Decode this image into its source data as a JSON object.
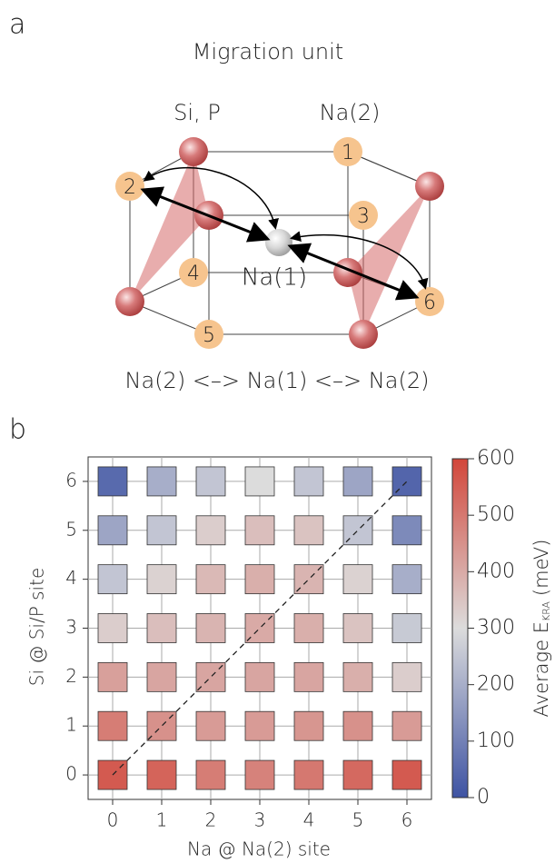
{
  "panel_a": {
    "label": "a",
    "title": "Migration unit",
    "group_labels": [
      "Si, P",
      "Na(2)"
    ],
    "center_label": "Na(1)",
    "site_labels": [
      "1",
      "2",
      "3",
      "4",
      "5",
      "6"
    ],
    "caption": "Na(2) <–> Na(1) <–> Na(2)"
  },
  "chart_data": {
    "type": "heatmap",
    "panel_label": "b",
    "x": [
      0,
      1,
      2,
      3,
      4,
      5,
      6
    ],
    "y": [
      0,
      1,
      2,
      3,
      4,
      5,
      6
    ],
    "values": [
      [
        560,
        540,
        490,
        480,
        500,
        530,
        560
      ],
      [
        490,
        450,
        430,
        430,
        440,
        450,
        430
      ],
      [
        420,
        410,
        410,
        410,
        410,
        390,
        330
      ],
      [
        330,
        360,
        380,
        400,
        390,
        350,
        260
      ],
      [
        250,
        320,
        370,
        390,
        380,
        320,
        200
      ],
      [
        180,
        250,
        330,
        360,
        350,
        250,
        120
      ],
      [
        50,
        200,
        250,
        300,
        250,
        180,
        40
      ]
    ],
    "xlabel": "Na @ Na(2) site",
    "ylabel": "Si @ Si/P site",
    "xlim": [
      -0.5,
      6.5
    ],
    "ylim": [
      -0.5,
      6.5
    ],
    "xticks": [
      0,
      1,
      2,
      3,
      4,
      5,
      6
    ],
    "yticks": [
      0,
      1,
      2,
      3,
      4,
      5,
      6
    ],
    "grid": true,
    "colorbar": {
      "label": "Average E",
      "label_sub": "KRA",
      "label_unit": "(meV)",
      "lim": [
        0,
        600
      ],
      "ticks": [
        0,
        100,
        200,
        300,
        400,
        500,
        600
      ],
      "colors": [
        "#3e53a3",
        "#dcdcdc",
        "#d2463a"
      ]
    }
  }
}
